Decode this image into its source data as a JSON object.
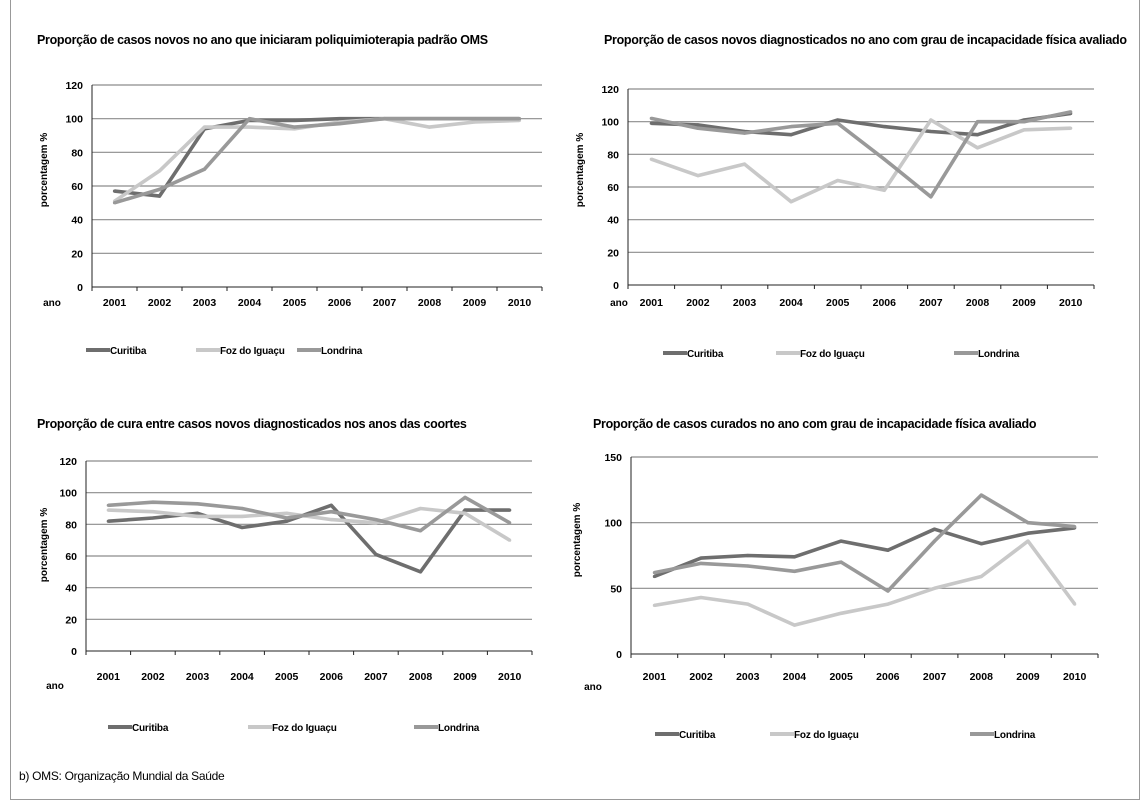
{
  "footnote": "b) OMS: Organização Mundial da Saúde",
  "colors": {
    "Curitiba": "#6e6e6e",
    "Foz do Iguaçu": "#c8c8c8",
    "Londrina": "#999999",
    "grid": "#8c8c8c"
  },
  "chart_data": [
    {
      "type": "line",
      "title": "Proporção de casos novos no ano que iniciaram poliquimioterapia padrão OMS",
      "xlabel": "ano",
      "ylabel": "porcentagem %",
      "x": [
        "2001",
        "2002",
        "2003",
        "2004",
        "2005",
        "2006",
        "2007",
        "2008",
        "2009",
        "2010"
      ],
      "ylim": [
        0,
        120
      ],
      "yticks": [
        0,
        20,
        40,
        60,
        80,
        100,
        120
      ],
      "grid": true,
      "legend_position": "bottom",
      "series": [
        {
          "name": "Curitiba",
          "values": [
            57,
            54,
            94,
            99,
            99,
            100,
            100,
            100,
            100,
            100
          ]
        },
        {
          "name": "Foz do Iguaçu",
          "values": [
            51,
            69,
            95,
            95,
            94,
            98,
            100,
            95,
            98,
            99
          ]
        },
        {
          "name": "Londrina",
          "values": [
            50,
            58,
            70,
            100,
            95,
            97,
            100,
            100,
            100,
            100
          ]
        }
      ]
    },
    {
      "type": "line",
      "title": "Proporção de casos novos diagnosticados no ano com grau de incapacidade física avaliado",
      "xlabel": "ano",
      "ylabel": "porcentagem %",
      "x": [
        "2001",
        "2002",
        "2003",
        "2004",
        "2005",
        "2006",
        "2007",
        "2008",
        "2009",
        "2010"
      ],
      "ylim": [
        0,
        120
      ],
      "yticks": [
        0,
        20,
        40,
        60,
        80,
        100,
        120
      ],
      "grid": true,
      "legend_position": "bottom",
      "series": [
        {
          "name": "Curitiba",
          "values": [
            99,
            98,
            94,
            92,
            101,
            97,
            94,
            92,
            101,
            105
          ]
        },
        {
          "name": "Foz do Iguaçu",
          "values": [
            77,
            67,
            74,
            51,
            64,
            58,
            101,
            84,
            95,
            96
          ]
        },
        {
          "name": "Londrina",
          "values": [
            102,
            96,
            93,
            97,
            99,
            77,
            54,
            100,
            100,
            106
          ]
        }
      ]
    },
    {
      "type": "line",
      "title": "Proporção de cura entre casos novos diagnosticados nos anos das coortes",
      "xlabel": "ano",
      "ylabel": "porcentagem %",
      "x": [
        "2001",
        "2002",
        "2003",
        "2004",
        "2005",
        "2006",
        "2007",
        "2008",
        "2009",
        "2010"
      ],
      "ylim": [
        0,
        120
      ],
      "yticks": [
        0,
        20,
        40,
        60,
        80,
        100,
        120
      ],
      "grid": true,
      "legend_position": "bottom",
      "series": [
        {
          "name": "Curitiba",
          "values": [
            82,
            84,
            87,
            78,
            82,
            92,
            61,
            50,
            89,
            89
          ]
        },
        {
          "name": "Foz do Iguaçu",
          "values": [
            89,
            88,
            85,
            85,
            87,
            83,
            81,
            90,
            87,
            70
          ]
        },
        {
          "name": "Londrina",
          "values": [
            92,
            94,
            93,
            90,
            84,
            88,
            83,
            76,
            97,
            81
          ]
        }
      ]
    },
    {
      "type": "line",
      "title": "Proporção de casos curados no ano com grau de incapacidade física avaliado",
      "xlabel": "ano",
      "ylabel": "porcentagem %",
      "x": [
        "2001",
        "2002",
        "2003",
        "2004",
        "2005",
        "2006",
        "2007",
        "2008",
        "2009",
        "2010"
      ],
      "ylim": [
        0,
        150
      ],
      "yticks": [
        0,
        50,
        100,
        150
      ],
      "grid": true,
      "legend_position": "bottom",
      "series": [
        {
          "name": "Curitiba",
          "values": [
            59,
            73,
            75,
            74,
            86,
            79,
            95,
            84,
            92,
            96
          ]
        },
        {
          "name": "Foz do Iguaçu",
          "values": [
            37,
            43,
            38,
            22,
            31,
            38,
            50,
            59,
            86,
            38
          ]
        },
        {
          "name": "Londrina",
          "values": [
            62,
            69,
            67,
            63,
            70,
            48,
            86,
            121,
            100,
            97
          ]
        }
      ]
    }
  ]
}
